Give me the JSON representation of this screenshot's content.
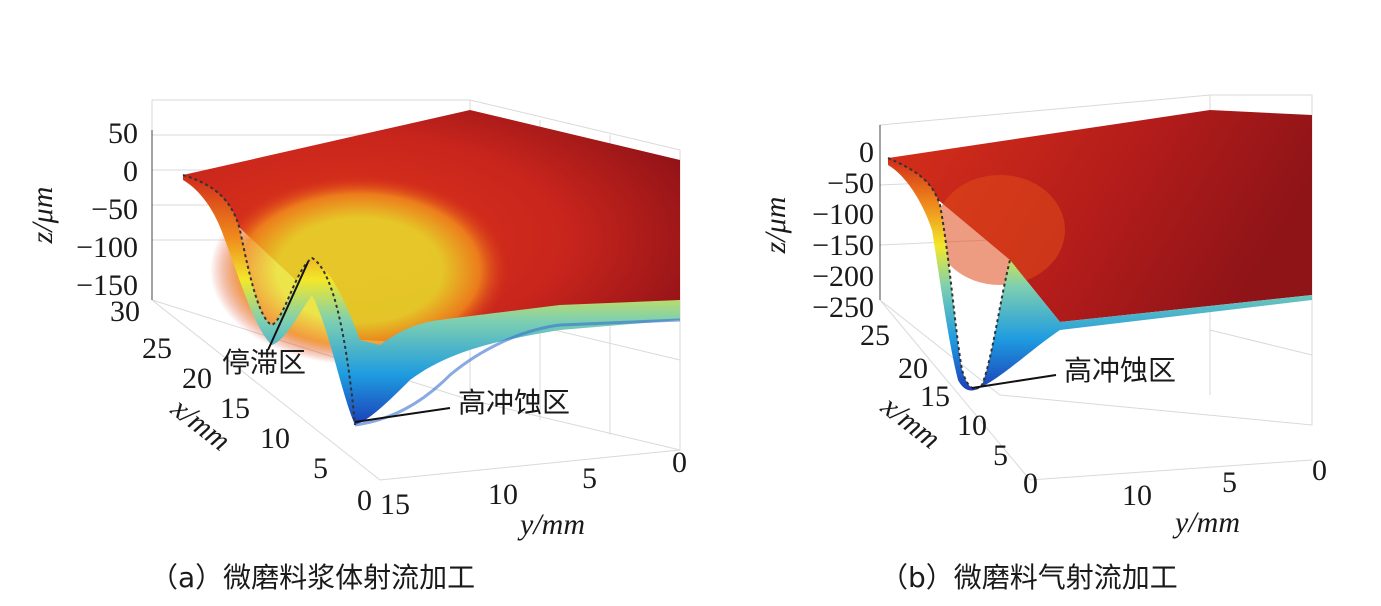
{
  "chart_data": [
    {
      "type": "surface3d",
      "panel": "a",
      "caption": "（a）微磨料浆体射流加工",
      "zlabel": "z/μm",
      "xlabel": "x/mm",
      "ylabel": "y/mm",
      "z_ticks": [
        "50",
        "0",
        "−50",
        "−100",
        "−150"
      ],
      "x_ticks": [
        "30",
        "25",
        "20",
        "15",
        "10",
        "5",
        "0"
      ],
      "y_ticks": [
        "15",
        "10",
        "5",
        "0"
      ],
      "zlim": [
        -180,
        50
      ],
      "xlim": [
        0,
        30
      ],
      "ylim": [
        0,
        15
      ],
      "colormap": "jet",
      "annotations": [
        {
          "text": "停滞区"
        },
        {
          "text": "高冲蚀区"
        }
      ],
      "profile_center_section": {
        "x_mm": [
          0,
          5,
          8,
          11,
          13,
          15,
          17,
          19,
          22,
          25,
          30
        ],
        "z_um": [
          0,
          -10,
          -50,
          -120,
          -175,
          -90,
          -60,
          -130,
          -100,
          -20,
          0
        ]
      }
    },
    {
      "type": "surface3d",
      "panel": "b",
      "caption": "（b）微磨料气射流加工",
      "zlabel": "z/μm",
      "xlabel": "x/mm",
      "ylabel": "y/mm",
      "z_ticks": [
        "0",
        "−50",
        "−100",
        "−150",
        "−200",
        "−250"
      ],
      "x_ticks": [
        "25",
        "20",
        "15",
        "10",
        "5",
        "0"
      ],
      "y_ticks": [
        "10",
        "5",
        "0"
      ],
      "zlim": [
        -260,
        20
      ],
      "xlim": [
        0,
        30
      ],
      "ylim": [
        0,
        15
      ],
      "colormap": "jet",
      "annotations": [
        {
          "text": "高冲蚀区"
        }
      ],
      "profile_center_section": {
        "x_mm": [
          0,
          5,
          10,
          12,
          14,
          15,
          16,
          18,
          20,
          25,
          30
        ],
        "z_um": [
          0,
          -5,
          -60,
          -150,
          -230,
          -255,
          -230,
          -150,
          -60,
          -5,
          0
        ]
      }
    }
  ]
}
